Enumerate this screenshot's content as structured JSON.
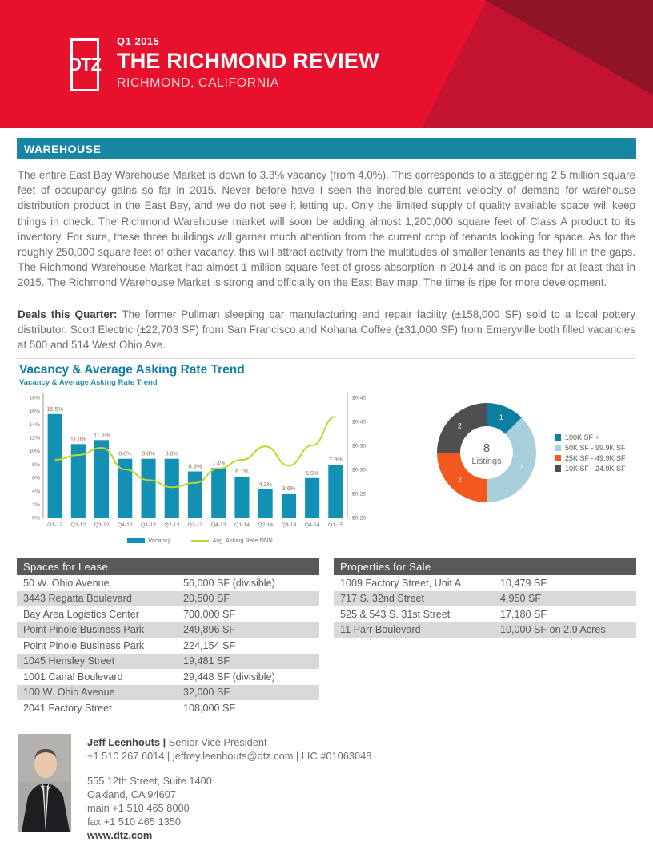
{
  "header": {
    "logo": "DTZ",
    "quarter": "Q1 2015",
    "title": "THE RICHMOND REVIEW",
    "subtitle": "RICHMOND, CALIFORNIA"
  },
  "section_banner": "WAREHOUSE",
  "intro_text": "The entire East Bay Warehouse Market is down to 3.3% vacancy (from 4.0%). This corresponds to a staggering 2.5 million square feet of occupancy gains so far in 2015. Never before have I seen the incredible current velocity of demand for warehouse distribution product in the East Bay, and we do not see it letting up. Only the limited supply of quality available space will keep things in check. The Richmond Warehouse market will soon be adding almost 1,200,000 square feet of Class A product to its inventory. For sure, these three buildings will garner much attention from the current crop of tenants looking for space. As for the roughly 250,000 square feet of other vacancy, this will attract activity from the multitudes of smaller tenants as they fill in the gaps. The Richmond Warehouse Market had almost 1 million square feet of gross absorption in 2014 and is on pace for at least that in 2015. The Richmond Warehouse Market is strong and officially on the East Bay map. The time is ripe for more development.",
  "deals": {
    "label": "Deals this Quarter:",
    "text": " The former Pullman sleeping car manufacturing and repair facility (±158,000 SF) sold to a local pottery distributor. Scott Electric (±22,703 SF) from San Francisco and Kohana Coffee (±31,000 SF) from Emeryville both filled vacancies at 500 and 514 West Ohio Ave."
  },
  "chart_section": {
    "title": "Vacancy & Average Asking Rate Trend",
    "subtitle": "Vacancy & Average Asking Rate Trend"
  },
  "chart_data": [
    {
      "type": "bar",
      "overlay": "line",
      "title": "Vacancy & Average Asking Rate Trend",
      "categories": [
        "Q1-12",
        "Q2-12",
        "Q3-12",
        "Q4-12",
        "Q1-13",
        "Q2-13",
        "Q3-13",
        "Q4-13",
        "Q1-14",
        "Q2-14",
        "Q3-14",
        "Q4-14",
        "Q1-15"
      ],
      "series": [
        {
          "name": "Vacancy",
          "type": "bar",
          "axis": "left",
          "values": [
            15.5,
            11.0,
            11.6,
            8.8,
            8.8,
            8.8,
            6.9,
            7.4,
            6.1,
            4.2,
            3.6,
            5.9,
            7.9
          ]
        },
        {
          "name": "Avg. Asking Rate NNN",
          "type": "line",
          "axis": "right",
          "values": [
            0.32,
            0.33,
            0.345,
            0.3,
            0.278,
            0.263,
            0.272,
            0.302,
            0.32,
            0.348,
            0.308,
            0.35,
            0.41
          ]
        }
      ],
      "left_axis": {
        "min": 0,
        "max": 18,
        "step": 2,
        "format": "percent"
      },
      "right_axis": {
        "min": 0.2,
        "max": 0.45,
        "step": 0.05,
        "format": "dollar"
      },
      "bar_color": "#1291b4",
      "line_color": "#c3d232",
      "grid": false,
      "legend_position": "bottom"
    },
    {
      "type": "pie",
      "subtype": "donut",
      "values": [
        1,
        3,
        2,
        2
      ],
      "labels": [
        "100K SF +",
        "50K SF - 99.9K SF",
        "25K SF - 49.9K SF",
        "10K SF - 24.9K SF"
      ],
      "colors": [
        "#0d7e9f",
        "#a8cfdc",
        "#f4581f",
        "#4f4f51"
      ],
      "center": {
        "number": "8",
        "label": "Listings"
      },
      "legend_position": "right"
    }
  ],
  "tables": {
    "lease": {
      "header": "Spaces for Lease",
      "rows": [
        {
          "name": "50 W. Ohio Avenue",
          "size": "56,000 SF (divisible)"
        },
        {
          "name": "3443 Regatta Boulevard",
          "size": "20,500 SF"
        },
        {
          "name": "Bay Area Logistics Center",
          "size": "700,000 SF"
        },
        {
          "name": "Point Pinole Business Park",
          "size": "249,896 SF"
        },
        {
          "name": "Point Pinole Business Park",
          "size": "224,154 SF"
        },
        {
          "name": "1045 Hensley Street",
          "size": "19,481 SF"
        },
        {
          "name": "1001 Canal Boulevard",
          "size": "29,448 SF (divisible)"
        },
        {
          "name": "100 W. Ohio Avenue",
          "size": "32,000 SF"
        },
        {
          "name": "2041 Factory Street",
          "size": "108,000 SF"
        }
      ]
    },
    "sale": {
      "header": "Properties for Sale",
      "rows": [
        {
          "name": "1009 Factory Street, Unit A",
          "size": "10,479 SF"
        },
        {
          "name": "717 S. 32nd Street",
          "size": "4,950 SF"
        },
        {
          "name": "525 & 543 S. 31st Street",
          "size": "17,180 SF"
        },
        {
          "name": "11 Parr Boulevard",
          "size": "10,000 SF on 2.9 Acres"
        }
      ]
    }
  },
  "footer": {
    "name": "Jeff Leenhouts |",
    "job_title": " Senior Vice President",
    "contact_line": "+1 510 267 6014 | jeffrey.leenhouts@dtz.com | LIC #01063048",
    "address1": "555 12th Street, Suite 1400",
    "address2": "Oakland, CA 94607",
    "main_phone": "main  +1 510 465 8000",
    "fax_phone": "fax  +1 510 465 1350",
    "website": "www.dtz.com"
  },
  "colors": {
    "brand_red": "#e8112d",
    "brand_red_mid": "#c31331",
    "brand_red_dark": "#8f1526",
    "teal_banner": "#1686a3",
    "teal_title": "#0f7fa2",
    "table_header_gray": "#58595b",
    "row_alt_gray": "#d9d9d9"
  }
}
